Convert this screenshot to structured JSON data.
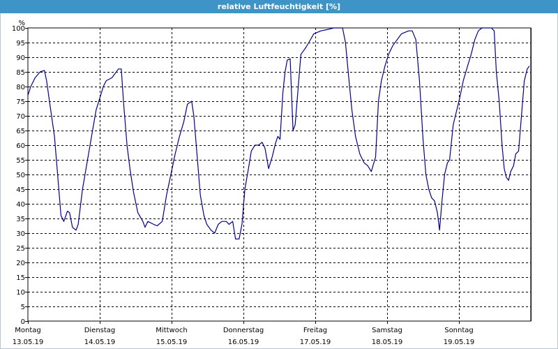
{
  "window": {
    "title": "relative Luftfeuchtigkeit [%]"
  },
  "chart_data": {
    "type": "line",
    "title": "relative Luftfeuchtigkeit [%]",
    "ylabel": "%",
    "ylim": [
      0,
      100
    ],
    "yticks": [
      0,
      5,
      10,
      15,
      20,
      25,
      30,
      35,
      40,
      45,
      50,
      55,
      60,
      65,
      70,
      75,
      80,
      85,
      90,
      95,
      100
    ],
    "xlim": [
      0,
      7
    ],
    "x_unit": "days since 13.05.19 00:00",
    "day_labels": [
      {
        "day": "Montag",
        "date": "13.05.19"
      },
      {
        "day": "Dienstag",
        "date": "14.05.19"
      },
      {
        "day": "Mittwoch",
        "date": "15.05.19"
      },
      {
        "day": "Donnerstag",
        "date": "16.05.19"
      },
      {
        "day": "Freitag",
        "date": "17.05.19"
      },
      {
        "day": "Samstag",
        "date": "18.05.19"
      },
      {
        "day": "Sonntag",
        "date": "19.05.19"
      }
    ],
    "grid": true,
    "line_color": "#00008b",
    "series": [
      {
        "name": "relative Luftfeuchtigkeit",
        "points": [
          [
            0.0,
            77
          ],
          [
            0.04,
            80
          ],
          [
            0.1,
            83
          ],
          [
            0.17,
            85
          ],
          [
            0.23,
            85.5
          ],
          [
            0.26,
            82
          ],
          [
            0.3,
            75
          ],
          [
            0.37,
            63
          ],
          [
            0.42,
            48
          ],
          [
            0.46,
            36
          ],
          [
            0.5,
            34
          ],
          [
            0.55,
            37.5
          ],
          [
            0.58,
            37
          ],
          [
            0.62,
            32
          ],
          [
            0.67,
            31
          ],
          [
            0.7,
            33
          ],
          [
            0.76,
            45
          ],
          [
            0.83,
            55
          ],
          [
            0.9,
            65
          ],
          [
            0.95,
            72
          ],
          [
            1.0,
            76
          ],
          [
            1.05,
            80
          ],
          [
            1.09,
            82
          ],
          [
            1.17,
            83
          ],
          [
            1.26,
            86
          ],
          [
            1.3,
            86
          ],
          [
            1.33,
            75
          ],
          [
            1.38,
            60
          ],
          [
            1.42,
            52
          ],
          [
            1.47,
            44
          ],
          [
            1.53,
            37
          ],
          [
            1.6,
            34
          ],
          [
            1.63,
            32
          ],
          [
            1.67,
            34
          ],
          [
            1.75,
            33
          ],
          [
            1.8,
            32.5
          ],
          [
            1.87,
            34
          ],
          [
            1.93,
            43
          ],
          [
            1.99,
            50
          ],
          [
            2.05,
            57
          ],
          [
            2.11,
            63
          ],
          [
            2.17,
            68
          ],
          [
            2.22,
            74
          ],
          [
            2.28,
            75
          ],
          [
            2.31,
            70
          ],
          [
            2.36,
            55
          ],
          [
            2.4,
            43
          ],
          [
            2.45,
            36
          ],
          [
            2.49,
            33
          ],
          [
            2.55,
            31
          ],
          [
            2.6,
            30
          ],
          [
            2.65,
            33
          ],
          [
            2.7,
            34
          ],
          [
            2.76,
            34
          ],
          [
            2.8,
            33
          ],
          [
            2.85,
            34
          ],
          [
            2.89,
            28
          ],
          [
            2.94,
            28
          ],
          [
            2.98,
            33
          ],
          [
            3.02,
            45
          ],
          [
            3.07,
            52
          ],
          [
            3.11,
            58
          ],
          [
            3.16,
            60
          ],
          [
            3.21,
            60
          ],
          [
            3.26,
            61
          ],
          [
            3.3,
            59
          ],
          [
            3.35,
            52
          ],
          [
            3.4,
            56
          ],
          [
            3.45,
            61
          ],
          [
            3.48,
            63
          ],
          [
            3.51,
            62
          ],
          [
            3.55,
            78
          ],
          [
            3.58,
            85
          ],
          [
            3.61,
            89
          ],
          [
            3.65,
            89.5
          ],
          [
            3.69,
            65
          ],
          [
            3.72,
            67
          ],
          [
            3.77,
            82
          ],
          [
            3.8,
            91
          ],
          [
            3.86,
            93
          ],
          [
            3.91,
            95
          ],
          [
            3.98,
            98
          ],
          [
            4.08,
            99
          ],
          [
            4.18,
            99.5
          ],
          [
            4.26,
            100
          ],
          [
            4.33,
            100
          ],
          [
            4.38,
            100
          ],
          [
            4.42,
            95
          ],
          [
            4.47,
            82
          ],
          [
            4.51,
            72
          ],
          [
            4.56,
            63
          ],
          [
            4.62,
            57
          ],
          [
            4.68,
            54
          ],
          [
            4.73,
            53
          ],
          [
            4.78,
            51
          ],
          [
            4.84,
            56
          ],
          [
            4.88,
            75
          ],
          [
            4.92,
            82
          ],
          [
            4.97,
            87
          ],
          [
            5.02,
            91
          ],
          [
            5.08,
            94
          ],
          [
            5.14,
            96
          ],
          [
            5.2,
            98
          ],
          [
            5.3,
            99
          ],
          [
            5.35,
            99
          ],
          [
            5.4,
            96
          ],
          [
            5.45,
            82
          ],
          [
            5.5,
            62
          ],
          [
            5.54,
            50
          ],
          [
            5.58,
            45
          ],
          [
            5.62,
            42
          ],
          [
            5.66,
            41
          ],
          [
            5.7,
            37
          ],
          [
            5.73,
            31
          ],
          [
            5.76,
            40
          ],
          [
            5.8,
            50
          ],
          [
            5.84,
            54
          ],
          [
            5.87,
            55
          ],
          [
            5.92,
            67
          ],
          [
            5.97,
            72
          ],
          [
            6.01,
            76
          ],
          [
            6.06,
            82
          ],
          [
            6.12,
            87
          ],
          [
            6.17,
            91
          ],
          [
            6.22,
            96
          ],
          [
            6.27,
            99
          ],
          [
            6.32,
            100
          ],
          [
            6.4,
            100
          ],
          [
            6.45,
            100
          ],
          [
            6.49,
            99
          ],
          [
            6.52,
            85
          ],
          [
            6.56,
            75
          ],
          [
            6.6,
            60
          ],
          [
            6.63,
            52
          ],
          [
            6.66,
            49
          ],
          [
            6.69,
            48
          ],
          [
            6.72,
            51
          ],
          [
            6.76,
            53
          ],
          [
            6.79,
            57
          ],
          [
            6.83,
            58
          ],
          [
            6.87,
            70
          ],
          [
            6.91,
            82
          ],
          [
            6.95,
            86
          ],
          [
            6.98,
            87
          ]
        ]
      }
    ]
  }
}
